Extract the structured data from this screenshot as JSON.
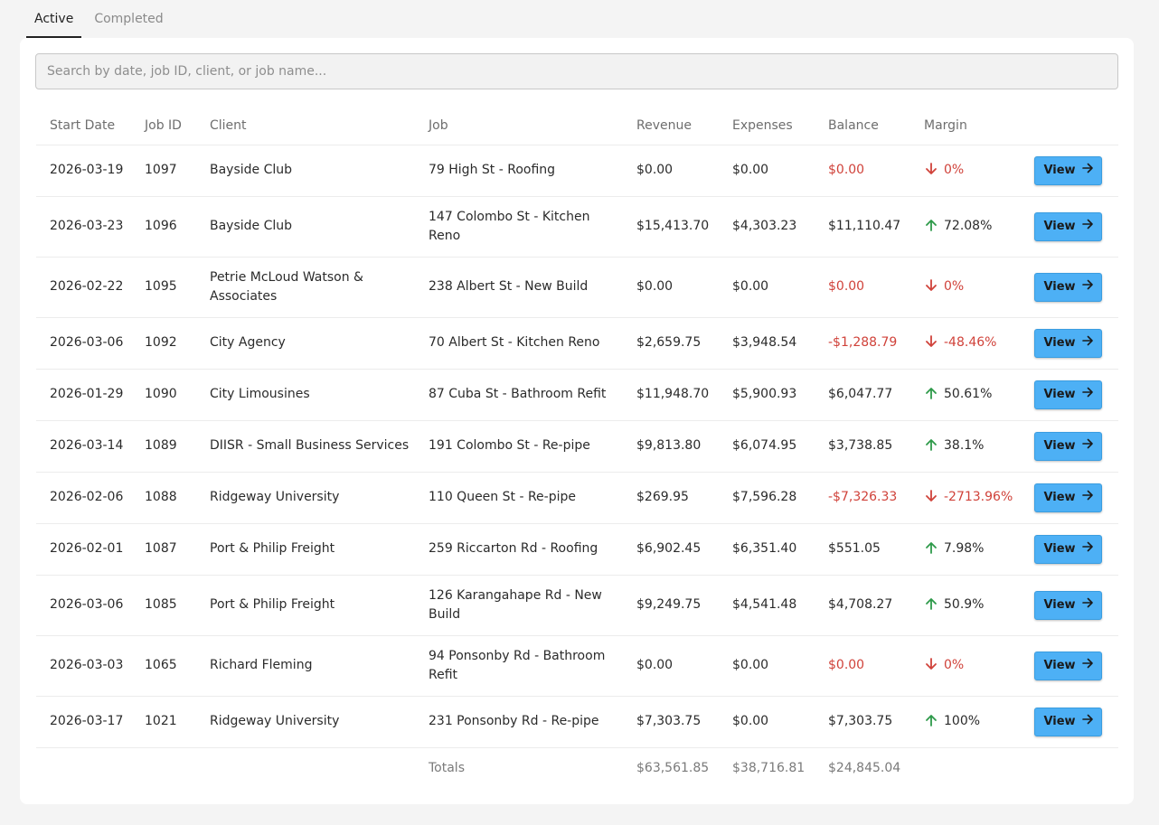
{
  "tabs": [
    {
      "label": "Active",
      "active": true
    },
    {
      "label": "Completed",
      "active": false
    }
  ],
  "search": {
    "placeholder": "Search by date, job ID, client, or job name..."
  },
  "columns": [
    "Start Date",
    "Job ID",
    "Client",
    "Job",
    "Revenue",
    "Expenses",
    "Balance",
    "Margin"
  ],
  "colors": {
    "negative": "#d0423a",
    "positive": "#2e9a4a",
    "button": "#4db0f5"
  },
  "rows": [
    {
      "start": "2026-03-19",
      "id": "1097",
      "client": "Bayside Club",
      "job": "79 High St - Roofing",
      "revenue": "$0.00",
      "expenses": "$0.00",
      "balance": "$0.00",
      "margin": "0%",
      "trend": "down",
      "button": "View"
    },
    {
      "start": "2026-03-23",
      "id": "1096",
      "client": "Bayside Club",
      "job": "147 Colombo St - Kitchen Reno",
      "revenue": "$15,413.70",
      "expenses": "$4,303.23",
      "balance": "$11,110.47",
      "margin": "72.08%",
      "trend": "up",
      "button": "View"
    },
    {
      "start": "2026-02-22",
      "id": "1095",
      "client": "Petrie McLoud Watson & Associates",
      "job": "238 Albert St - New Build",
      "revenue": "$0.00",
      "expenses": "$0.00",
      "balance": "$0.00",
      "margin": "0%",
      "trend": "down",
      "button": "View"
    },
    {
      "start": "2026-03-06",
      "id": "1092",
      "client": "City Agency",
      "job": "70 Albert St - Kitchen Reno",
      "revenue": "$2,659.75",
      "expenses": "$3,948.54",
      "balance": "-$1,288.79",
      "margin": "-48.46%",
      "trend": "down",
      "button": "View"
    },
    {
      "start": "2026-01-29",
      "id": "1090",
      "client": "City Limousines",
      "job": "87 Cuba St - Bathroom Refit",
      "revenue": "$11,948.70",
      "expenses": "$5,900.93",
      "balance": "$6,047.77",
      "margin": "50.61%",
      "trend": "up",
      "button": "View"
    },
    {
      "start": "2026-03-14",
      "id": "1089",
      "client": "DIISR - Small Business Services",
      "job": "191 Colombo St - Re-pipe",
      "revenue": "$9,813.80",
      "expenses": "$6,074.95",
      "balance": "$3,738.85",
      "margin": "38.1%",
      "trend": "up",
      "button": "View"
    },
    {
      "start": "2026-02-06",
      "id": "1088",
      "client": "Ridgeway University",
      "job": "110 Queen St - Re-pipe",
      "revenue": "$269.95",
      "expenses": "$7,596.28",
      "balance": "-$7,326.33",
      "margin": "-2713.96%",
      "trend": "down",
      "button": "View"
    },
    {
      "start": "2026-02-01",
      "id": "1087",
      "client": "Port & Philip Freight",
      "job": "259 Riccarton Rd - Roofing",
      "revenue": "$6,902.45",
      "expenses": "$6,351.40",
      "balance": "$551.05",
      "margin": "7.98%",
      "trend": "up",
      "button": "View"
    },
    {
      "start": "2026-03-06",
      "id": "1085",
      "client": "Port & Philip Freight",
      "job": "126 Karangahape Rd - New Build",
      "revenue": "$9,249.75",
      "expenses": "$4,541.48",
      "balance": "$4,708.27",
      "margin": "50.9%",
      "trend": "up",
      "button": "View"
    },
    {
      "start": "2026-03-03",
      "id": "1065",
      "client": "Richard Fleming",
      "job": "94 Ponsonby Rd - Bathroom Refit",
      "revenue": "$0.00",
      "expenses": "$0.00",
      "balance": "$0.00",
      "margin": "0%",
      "trend": "down",
      "button": "View"
    },
    {
      "start": "2026-03-17",
      "id": "1021",
      "client": "Ridgeway University",
      "job": "231 Ponsonby Rd - Re-pipe",
      "revenue": "$7,303.75",
      "expenses": "$0.00",
      "balance": "$7,303.75",
      "margin": "100%",
      "trend": "up",
      "button": "View"
    }
  ],
  "totals": {
    "label": "Totals",
    "revenue": "$63,561.85",
    "expenses": "$38,716.81",
    "balance": "$24,845.04"
  }
}
